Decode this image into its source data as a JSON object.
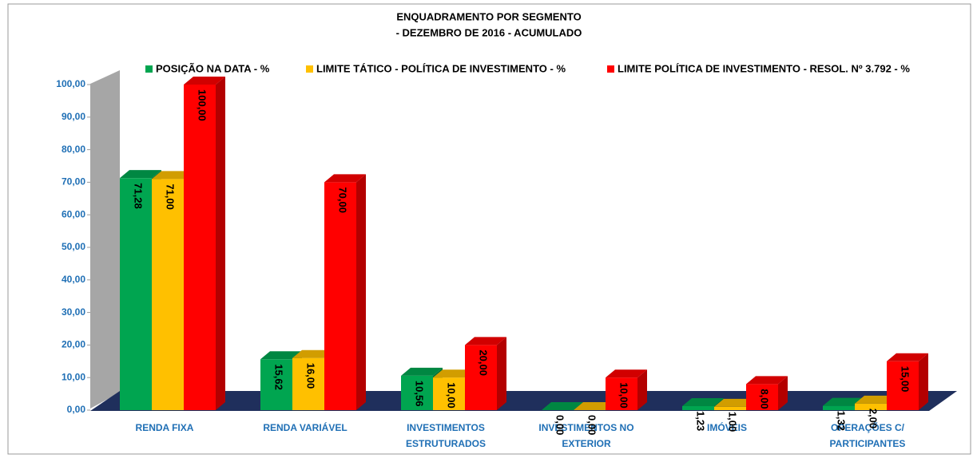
{
  "chart_data": {
    "type": "bar3d",
    "title": "ENQUADRAMENTO POR  SEGMENTO",
    "subtitle": "- DEZEMBRO DE 2016 - ACUMULADO",
    "categories": [
      [
        "RENDA FIXA"
      ],
      [
        "RENDA VARIÁVEL"
      ],
      [
        "INVESTIMENTOS",
        "ESTRUTURADOS"
      ],
      [
        "INVESTIMENTOS NO",
        "EXTERIOR"
      ],
      [
        "IMÓVEIS"
      ],
      [
        "OPERAÇÕES C/",
        "PARTICIPANTES"
      ]
    ],
    "series": [
      {
        "name": "POSIÇÃO NA DATA - %",
        "color": "#00a550",
        "values": [
          71.28,
          15.62,
          10.56,
          0,
          1.23,
          1.32
        ],
        "value_labels": [
          "71,28",
          "15,62",
          "10,56",
          "0,00",
          "1,23",
          "1,32"
        ]
      },
      {
        "name": "LIMITE TÁTICO - POLÍTICA DE INVESTIMENTO - %",
        "color": "#ffc000",
        "values": [
          71,
          16,
          10,
          0,
          1,
          2
        ],
        "value_labels": [
          "71,00",
          "16,00",
          "10,00",
          "0,00",
          "1,00",
          "2,00"
        ]
      },
      {
        "name": "LIMITE POLÍTICA DE INVESTIMENTO - RESOL. Nº 3.792 - %",
        "color": "#ff0000",
        "values": [
          100,
          70,
          20,
          10,
          8,
          15
        ],
        "value_labels": [
          "100,00",
          "70,00",
          "20,00",
          "10,00",
          "8,00",
          "15,00"
        ]
      }
    ],
    "ylim": [
      0,
      100
    ],
    "yticks": [
      {
        "value": 0,
        "label": "0,00"
      },
      {
        "value": 10,
        "label": "10,00"
      },
      {
        "value": 20,
        "label": "20,00"
      },
      {
        "value": 30,
        "label": "30,00"
      },
      {
        "value": 40,
        "label": "40,00"
      },
      {
        "value": 50,
        "label": "50,00"
      },
      {
        "value": 60,
        "label": "60,00"
      },
      {
        "value": 70,
        "label": "70,00"
      },
      {
        "value": 80,
        "label": "80,00"
      },
      {
        "value": 90,
        "label": "90,00"
      },
      {
        "value": 100,
        "label": "100,00"
      }
    ]
  }
}
